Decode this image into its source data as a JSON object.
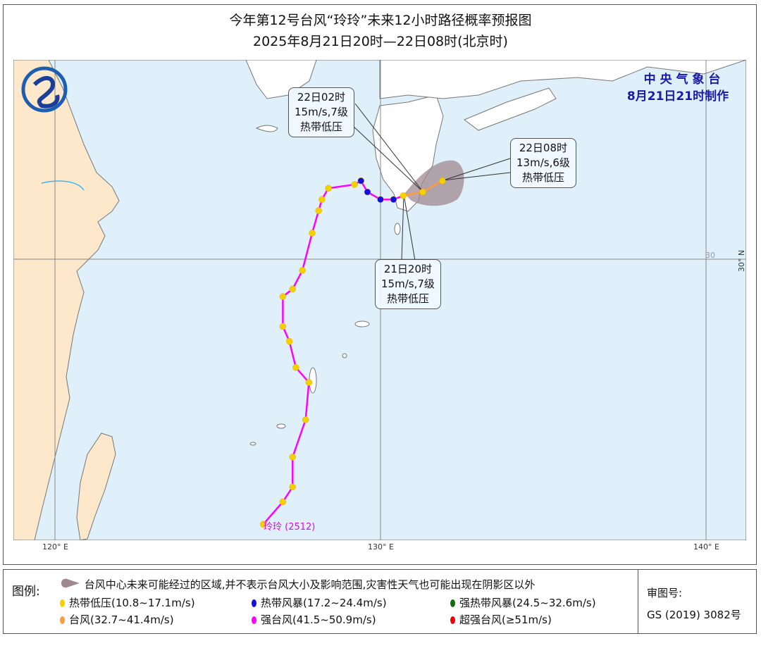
{
  "title": {
    "line1": "今年第12号台风“玲玲”未来12小时路径概率预报图",
    "line2": "2025年8月21日20时—22日08时(北京时)"
  },
  "agency": {
    "name": "中 央 气 象 台",
    "made": "8月21日21时制作"
  },
  "colors": {
    "sea": "#dff0fa",
    "china_land": "#fde8cc",
    "foreign_land": "#ffffff",
    "track": "#ff00ff",
    "cone": "#a08890",
    "agency": "#1a1aa8"
  },
  "axes": {
    "lon_labels": [
      "120° E",
      "130° E",
      "140° E"
    ],
    "lat_label": "30° N",
    "lat_inner": "30"
  },
  "typhoon": {
    "label": "玲玲 (2512)"
  },
  "track": [
    {
      "lon": 126.4,
      "lat": 22.9,
      "cat": "td"
    },
    {
      "lon": 127.0,
      "lat": 23.5,
      "cat": "td"
    },
    {
      "lon": 127.3,
      "lat": 23.9,
      "cat": "td"
    },
    {
      "lon": 127.3,
      "lat": 24.7,
      "cat": "td"
    },
    {
      "lon": 127.7,
      "lat": 25.7,
      "cat": "td"
    },
    {
      "lon": 127.8,
      "lat": 26.7,
      "cat": "td"
    },
    {
      "lon": 127.4,
      "lat": 27.1,
      "cat": "td"
    },
    {
      "lon": 127.2,
      "lat": 27.8,
      "cat": "td"
    },
    {
      "lon": 127.0,
      "lat": 28.2,
      "cat": "td"
    },
    {
      "lon": 127.0,
      "lat": 29.0,
      "cat": "td"
    },
    {
      "lon": 127.3,
      "lat": 29.2,
      "cat": "td"
    },
    {
      "lon": 127.6,
      "lat": 29.7,
      "cat": "td"
    },
    {
      "lon": 127.9,
      "lat": 30.7,
      "cat": "td"
    },
    {
      "lon": 128.1,
      "lat": 31.3,
      "cat": "td"
    },
    {
      "lon": 128.2,
      "lat": 31.6,
      "cat": "td"
    },
    {
      "lon": 128.4,
      "lat": 31.9,
      "cat": "td"
    },
    {
      "lon": 129.2,
      "lat": 32.0,
      "cat": "td"
    },
    {
      "lon": 129.4,
      "lat": 32.1,
      "cat": "ts"
    },
    {
      "lon": 129.6,
      "lat": 31.8,
      "cat": "ts"
    },
    {
      "lon": 130.0,
      "lat": 31.6,
      "cat": "ts"
    },
    {
      "lon": 130.4,
      "lat": 31.6,
      "cat": "ts"
    },
    {
      "lon": 130.7,
      "lat": 31.7,
      "cat": "td"
    }
  ],
  "forecast": [
    {
      "lon": 131.3,
      "lat": 31.8,
      "cat": "td"
    },
    {
      "lon": 131.9,
      "lat": 32.1,
      "cat": "td"
    }
  ],
  "callouts": [
    {
      "time": "22日02时",
      "wind": "15m/s,7级",
      "grade": "热带低压"
    },
    {
      "time": "22日08时",
      "wind": "13m/s,6级",
      "grade": "热带低压"
    },
    {
      "time": "21日20时",
      "wind": "15m/s,7级",
      "grade": "热带低压"
    }
  ],
  "legend": {
    "title": "图例:",
    "cone_text": "台风中心未来可能经过的区域,并不表示台风大小及影响范围,灾害性天气也可能出现在阴影区以外",
    "items": [
      {
        "label": "热带低压(10.8~17.1m/s)",
        "color": "#f5d000"
      },
      {
        "label": "热带风暴(17.2~24.4m/s)",
        "color": "#1010e0"
      },
      {
        "label": "强热带风暴(24.5~32.6m/s)",
        "color": "#107010"
      },
      {
        "label": "台风(32.7~41.4m/s)",
        "color": "#ff9a40"
      },
      {
        "label": "强台风(41.5~50.9m/s)",
        "color": "#ff00ff"
      },
      {
        "label": "超强台风(≥51m/s)",
        "color": "#ee0000"
      }
    ],
    "review_label": "审图号:",
    "review_no": "GS (2019) 3082号"
  }
}
